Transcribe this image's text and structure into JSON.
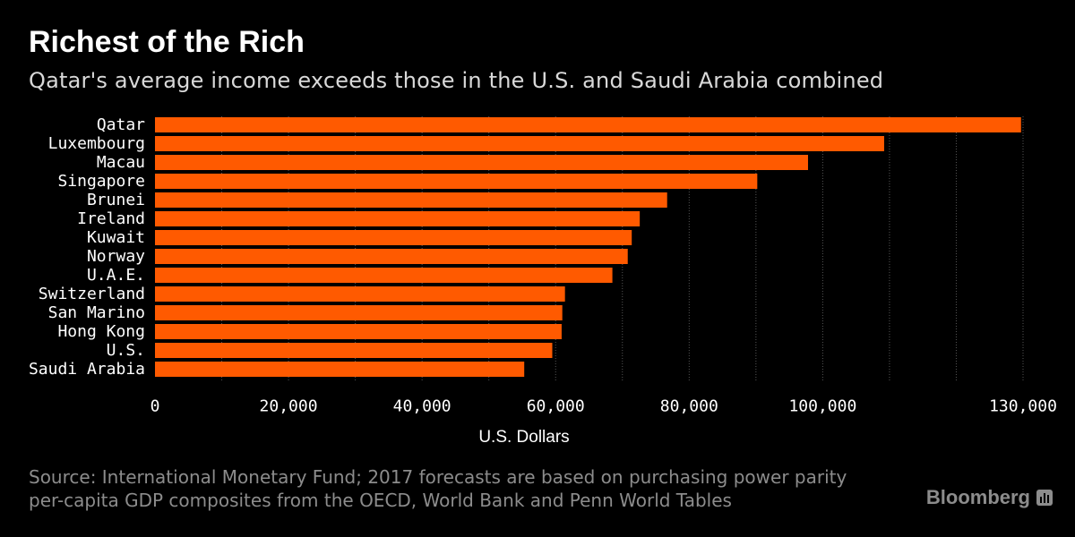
{
  "header": {
    "title": "Richest of the Rich",
    "subtitle": "Qatar's average income exceeds those in the U.S. and Saudi Arabia combined"
  },
  "footer": {
    "source_line1": "Source: International Monetary Fund; 2017 forecasts are based on purchasing power parity",
    "source_line2": "per-capita GDP composites from the OECD, World Bank and Penn World Tables",
    "logo_text": "Bloomberg",
    "logo_icon": "bloomberg-terminal-icon"
  },
  "colors": {
    "background": "#000000",
    "bar": "#ff5a00",
    "grid": "#555555",
    "text": "#ffffff"
  },
  "chart_data": {
    "type": "bar",
    "orientation": "horizontal",
    "title": "Richest of the Rich",
    "subtitle": "Qatar's average income exceeds those in the U.S. and Saudi Arabia combined",
    "xlabel": "U.S. Dollars",
    "ylabel": "",
    "xlim": [
      0,
      130000
    ],
    "xticks": [
      0,
      20000,
      40000,
      60000,
      80000,
      100000,
      130000
    ],
    "xtick_labels": [
      "0",
      "20,000",
      "40,000",
      "60,000",
      "80,000",
      "100,000",
      "130,000"
    ],
    "grid": true,
    "gridlines": [
      10000,
      20000,
      30000,
      40000,
      50000,
      60000,
      70000,
      80000,
      90000,
      100000,
      110000,
      120000,
      130000
    ],
    "categories": [
      "Qatar",
      "Luxembourg",
      "Macau",
      "Singapore",
      "Brunei",
      "Ireland",
      "Kuwait",
      "Norway",
      "U.A.E.",
      "Switzerland",
      "San Marino",
      "Hong Kong",
      "U.S.",
      "Saudi Arabia"
    ],
    "values": [
      129700,
      109200,
      97800,
      90200,
      76700,
      72600,
      71400,
      70800,
      68500,
      61400,
      61000,
      60900,
      59500,
      55300
    ]
  }
}
